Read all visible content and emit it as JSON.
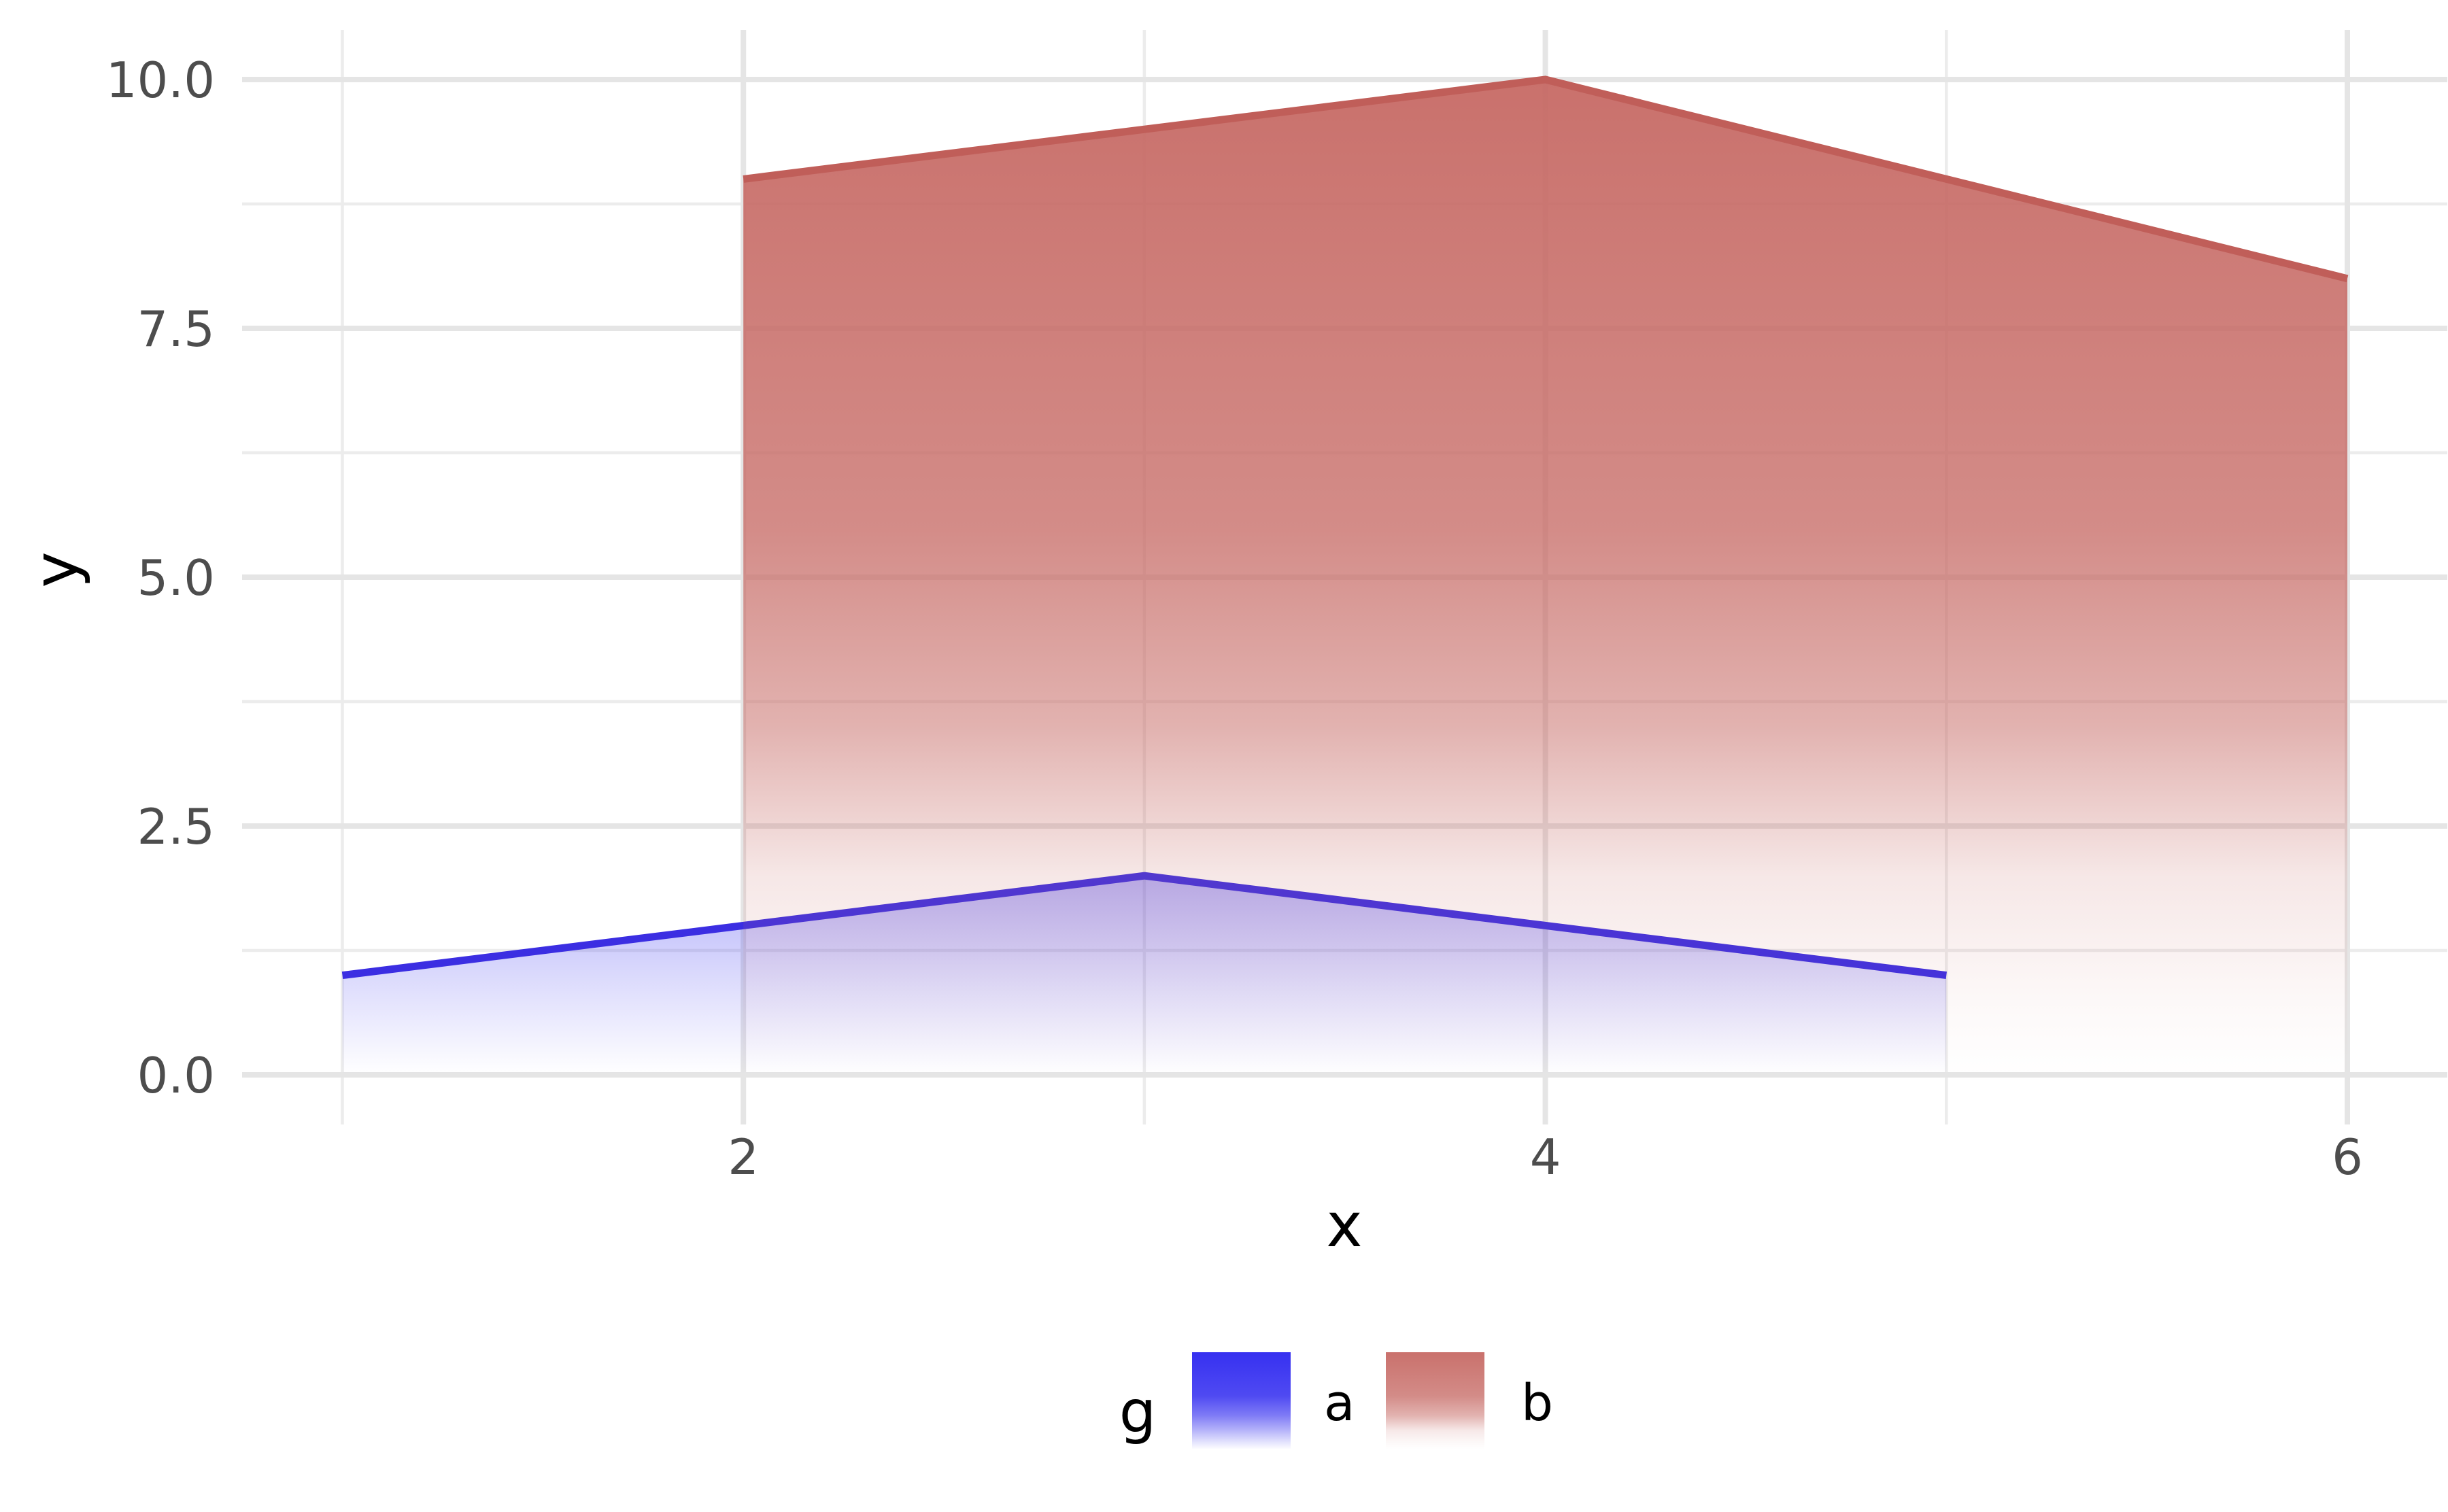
{
  "chart_data": {
    "type": "area",
    "title": "",
    "xlabel": "x",
    "ylabel": "y",
    "legend_title": "g",
    "legend_position": "bottom",
    "grid": true,
    "background": "#ffffff",
    "grid_major_color": "#e5e5e5",
    "grid_minor_color": "#ececec",
    "tick_text_color": "#4d4d4d",
    "xlim": [
      0.75,
      6.25
    ],
    "ylim": [
      -0.5,
      10.5
    ],
    "x_ticks": [
      2,
      4,
      6
    ],
    "x_tick_labels": [
      "2",
      "4",
      "6"
    ],
    "y_ticks": [
      0,
      2.5,
      5,
      7.5,
      10
    ],
    "y_tick_labels": [
      "0.0",
      "2.5",
      "5.0",
      "7.5",
      "10.0"
    ],
    "x_minor_ticks": [
      1,
      3,
      5
    ],
    "y_minor_ticks": [
      1.25,
      3.75,
      6.25,
      8.75
    ],
    "fill_style": "vertical gradient fading to transparent toward y=0",
    "baseline": 0,
    "series": [
      {
        "name": "a",
        "points": [
          [
            1,
            1
          ],
          [
            3,
            2
          ],
          [
            5,
            1
          ]
        ],
        "line_color": "#3b2ee2",
        "fill_color": "#302af0"
      },
      {
        "name": "b",
        "points": [
          [
            2,
            9
          ],
          [
            4,
            10
          ],
          [
            6,
            8
          ]
        ],
        "line_color": "#c05e59",
        "fill_color": "#c76b66"
      }
    ]
  },
  "axes": {
    "x_title": "x",
    "y_title": "y"
  },
  "legend": {
    "title": "g",
    "entries": [
      {
        "label": "a",
        "color": "#302af0"
      },
      {
        "label": "b",
        "color": "#c76b66"
      }
    ]
  }
}
